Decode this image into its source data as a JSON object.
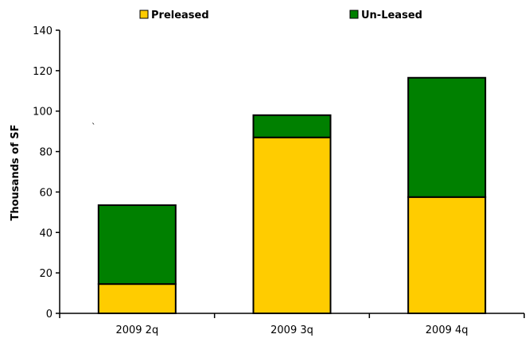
{
  "chart_data": {
    "type": "bar",
    "stacked": true,
    "categories": [
      "2009 2q",
      "2009 3q",
      "2009 4q"
    ],
    "series": [
      {
        "name": "Preleased",
        "values": [
          14.5,
          87,
          57.5
        ],
        "color": "#FFCC00"
      },
      {
        "name": "Un-Leased",
        "values": [
          39,
          11,
          59
        ],
        "color": "#008000"
      }
    ],
    "ylabel": "Thousands of SF",
    "xlabel": "",
    "ylim": [
      0,
      140
    ],
    "yticks": [
      0,
      20,
      40,
      60,
      80,
      100,
      120,
      140
    ],
    "legend_position": "top",
    "grid": false
  }
}
